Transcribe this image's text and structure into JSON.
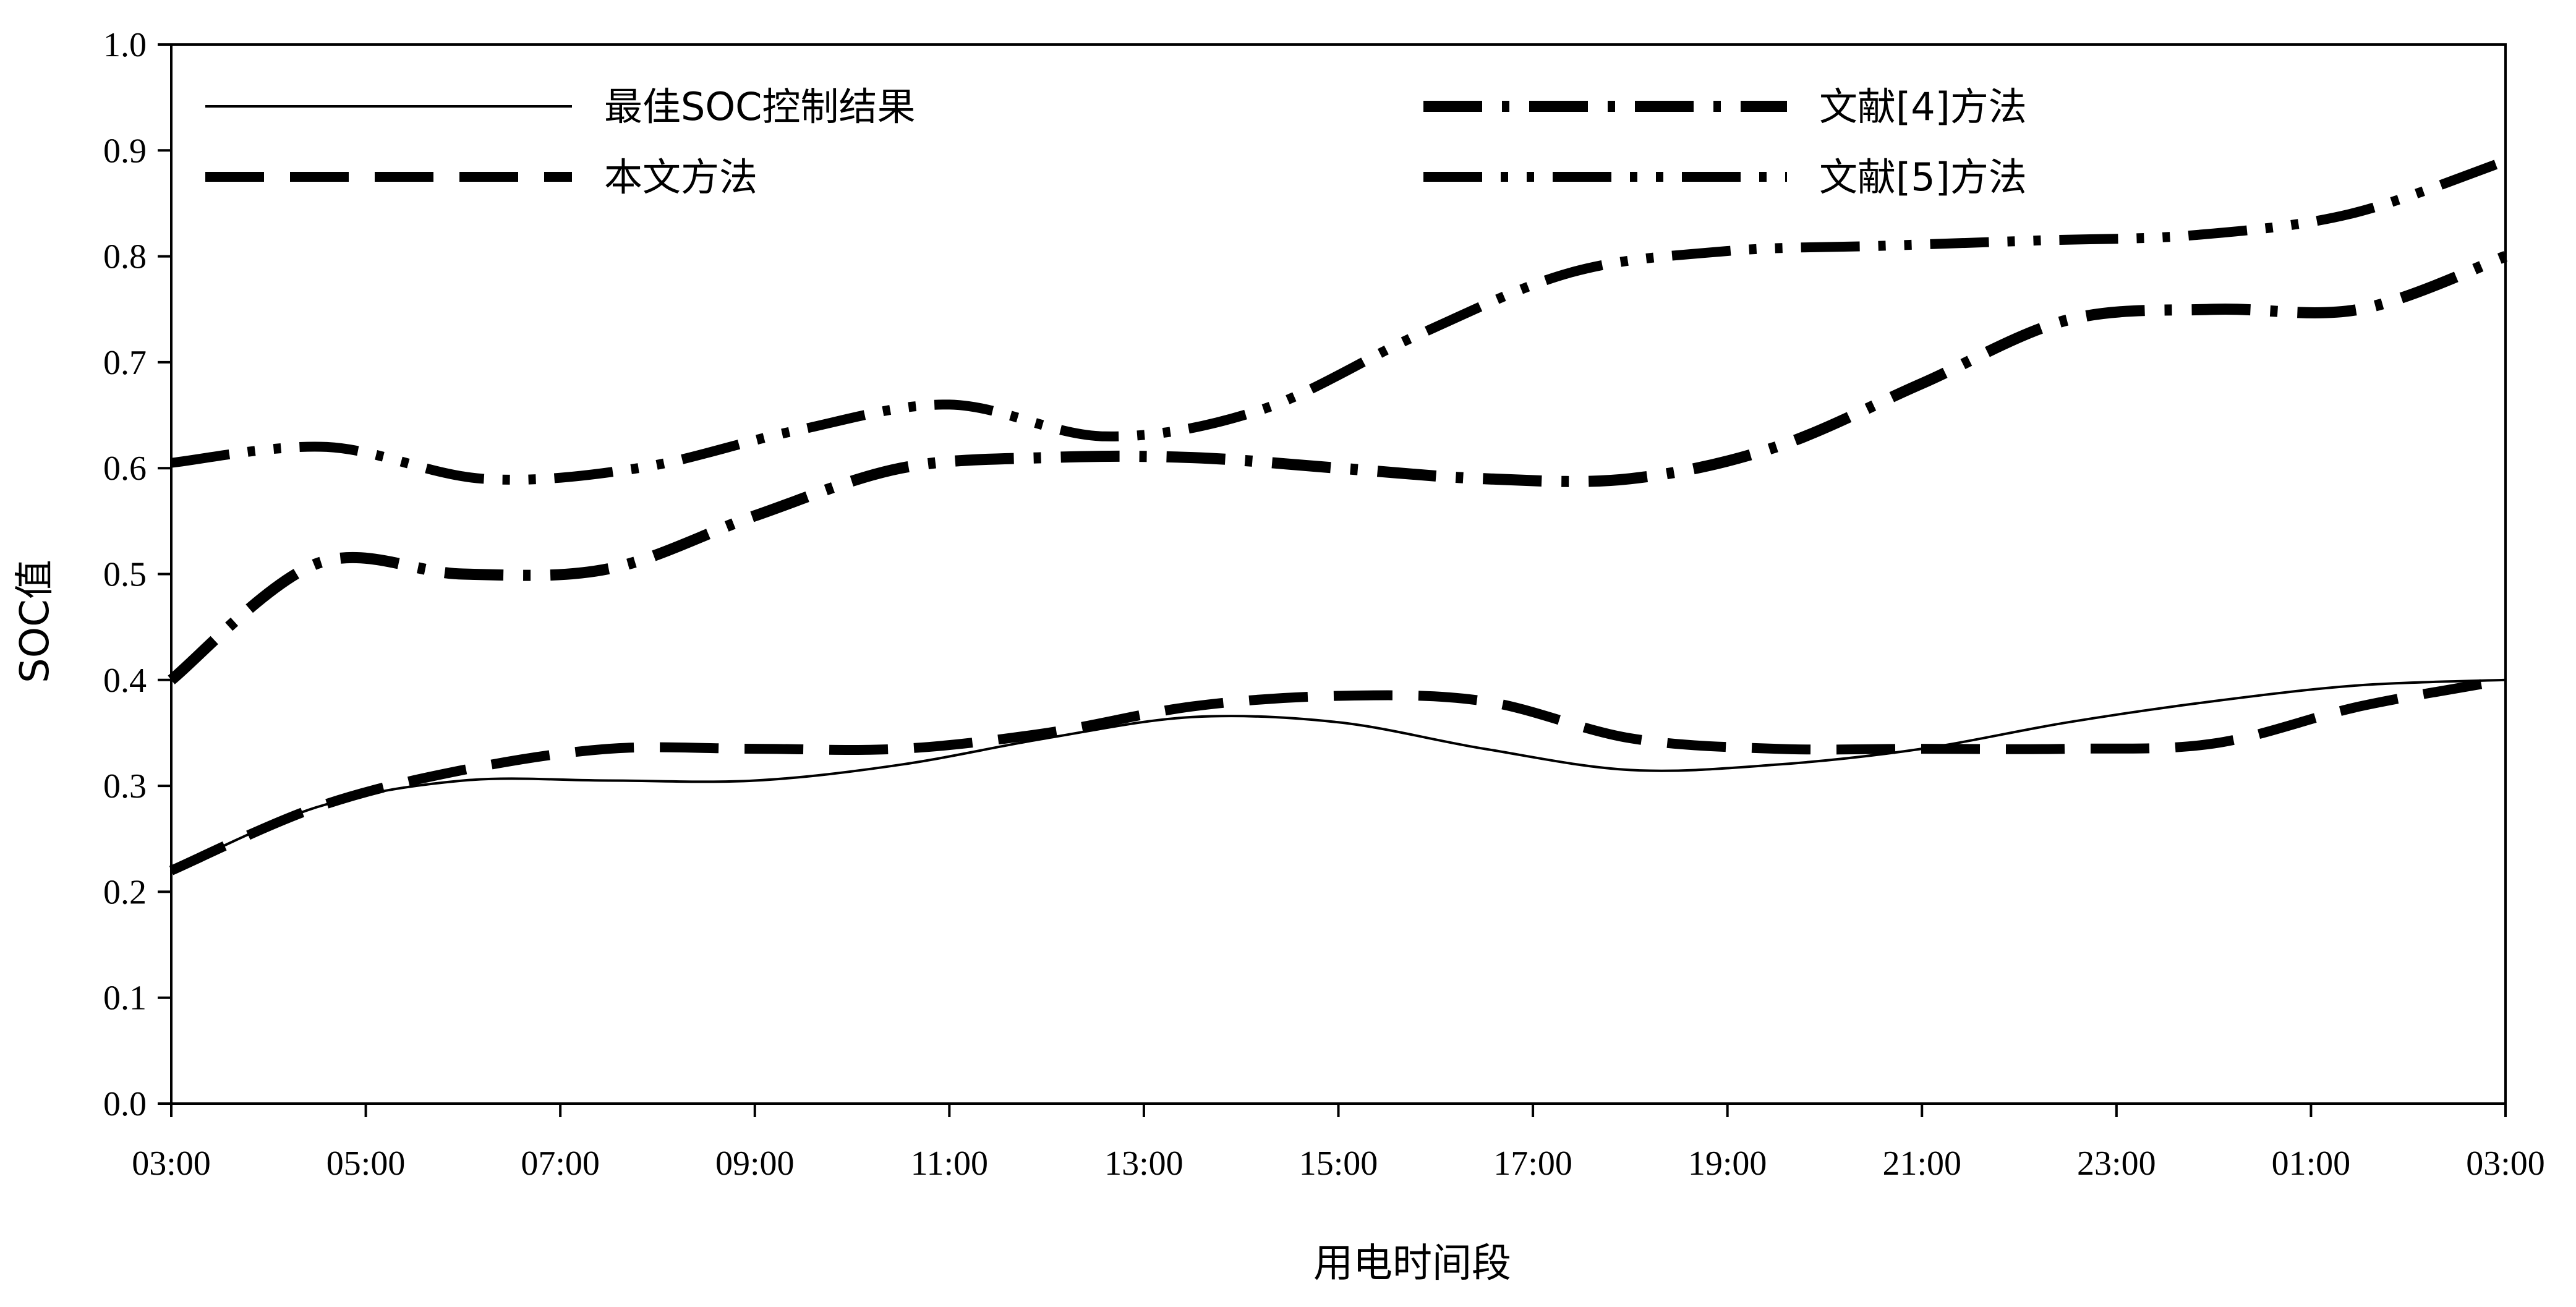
{
  "chart_data": {
    "type": "line",
    "title": "",
    "xlabel": "用电时间段",
    "ylabel": "SOC值",
    "ylim": [
      0,
      1.0
    ],
    "yticks": [
      "0.0",
      "0.1",
      "0.2",
      "0.3",
      "0.4",
      "0.5",
      "0.6",
      "0.7",
      "0.8",
      "0.9",
      "1.0"
    ],
    "xticks": [
      "03:00",
      "05:00",
      "07:00",
      "09:00",
      "11:00",
      "13:00",
      "15:00",
      "17:00",
      "19:00",
      "21:00",
      "23:00",
      "01:00",
      "03:00"
    ],
    "legend_position": "top",
    "grid": false,
    "series": [
      {
        "name": "最佳SOC控制结果",
        "style": "solid-thin",
        "color": "#000000",
        "values": [
          0.22,
          0.28,
          0.305,
          0.305,
          0.305,
          0.32,
          0.345,
          0.365,
          0.36,
          0.335,
          0.315,
          0.32,
          0.335,
          0.36,
          0.38,
          0.395,
          0.4
        ]
      },
      {
        "name": "本文方法",
        "style": "dash",
        "color": "#000000",
        "values": [
          0.22,
          0.28,
          0.315,
          0.335,
          0.335,
          0.335,
          0.35,
          0.375,
          0.385,
          0.38,
          0.345,
          0.335,
          0.335,
          0.335,
          0.34,
          0.375,
          0.4
        ]
      },
      {
        "name": "文献[4]方法",
        "style": "dash-dot",
        "color": "#000000",
        "values": [
          0.4,
          0.51,
          0.5,
          0.505,
          0.555,
          0.6,
          0.61,
          0.61,
          0.6,
          0.59,
          0.59,
          0.62,
          0.68,
          0.74,
          0.75,
          0.75,
          0.8
        ]
      },
      {
        "name": "文献[5]方法",
        "style": "dash-dot-dot",
        "color": "#000000",
        "values": [
          0.605,
          0.62,
          0.59,
          0.6,
          0.635,
          0.66,
          0.63,
          0.655,
          0.725,
          0.785,
          0.805,
          0.81,
          0.815,
          0.82,
          0.84,
          0.89
        ]
      }
    ]
  }
}
